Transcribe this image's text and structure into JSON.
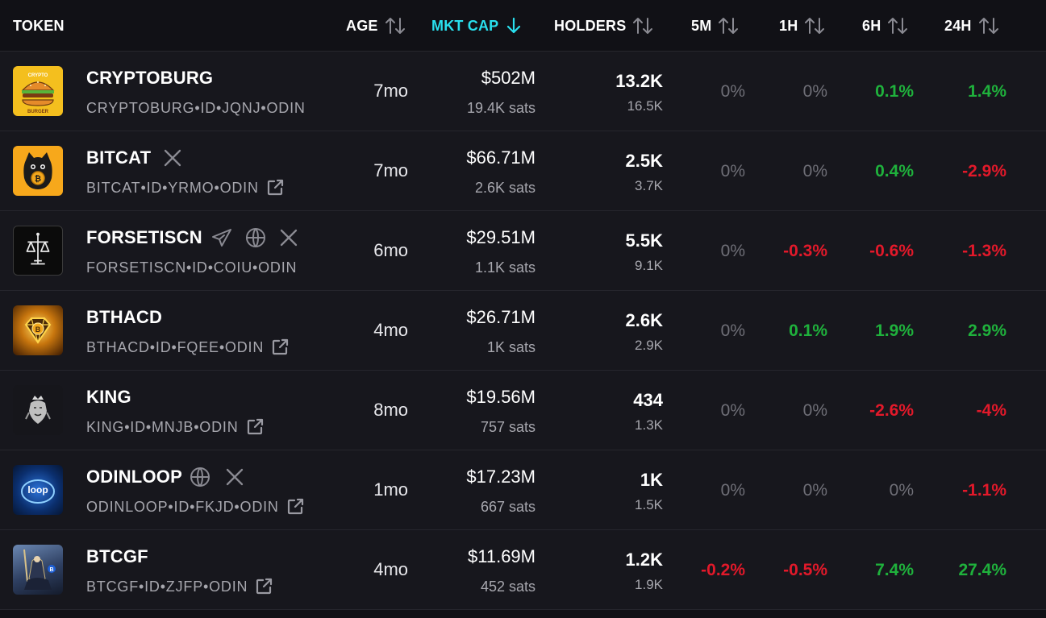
{
  "header": {
    "token": "TOKEN",
    "age": "AGE",
    "mktcap": "MKT CAP",
    "holders": "HOLDERS",
    "m5": "5M",
    "h1": "1H",
    "h6": "6H",
    "h24": "24H"
  },
  "colors": {
    "accent": "#29e0ee",
    "positive": "#1fb13c",
    "negative": "#e2192a",
    "neutral": "#6f6f77"
  },
  "rows": [
    {
      "name": "CRYPTOBURG",
      "id": "CRYPTOBURG•ID•JQNJ•ODIN",
      "logo_text": [
        "CRYPTO",
        "BURGER"
      ],
      "age": "7mo",
      "mktcap": "$502M",
      "sats": "19.4K sats",
      "holders": "13.2K",
      "holders2": "16.5K",
      "m5": "0%",
      "h1": "0%",
      "h6": "0.1%",
      "h24": "1.4%"
    },
    {
      "name": "BITCAT",
      "id": "BITCAT•ID•YRMO•ODIN",
      "age": "7mo",
      "mktcap": "$66.71M",
      "sats": "2.6K sats",
      "holders": "2.5K",
      "holders2": "3.7K",
      "m5": "0%",
      "h1": "0%",
      "h6": "0.4%",
      "h24": "-2.9%"
    },
    {
      "name": "FORSETISCN",
      "id": "FORSETISCN•ID•COIU•ODIN",
      "age": "6mo",
      "mktcap": "$29.51M",
      "sats": "1.1K sats",
      "holders": "5.5K",
      "holders2": "9.1K",
      "m5": "0%",
      "h1": "-0.3%",
      "h6": "-0.6%",
      "h24": "-1.3%"
    },
    {
      "name": "BTHACD",
      "id": "BTHACD•ID•FQEE•ODIN",
      "age": "4mo",
      "mktcap": "$26.71M",
      "sats": "1K sats",
      "holders": "2.6K",
      "holders2": "2.9K",
      "m5": "0%",
      "h1": "0.1%",
      "h6": "1.9%",
      "h24": "2.9%"
    },
    {
      "name": "KING",
      "id": "KING•ID•MNJB•ODIN",
      "age": "8mo",
      "mktcap": "$19.56M",
      "sats": "757 sats",
      "holders": "434",
      "holders2": "1.3K",
      "m5": "0%",
      "h1": "0%",
      "h6": "-2.6%",
      "h24": "-4%"
    },
    {
      "name": "ODINLOOP",
      "id": "ODINLOOP•ID•FKJD•ODIN",
      "logo_text": "loop",
      "age": "1mo",
      "mktcap": "$17.23M",
      "sats": "667 sats",
      "holders": "1K",
      "holders2": "1.5K",
      "m5": "0%",
      "h1": "0%",
      "h6": "0%",
      "h24": "-1.1%"
    },
    {
      "name": "BTCGF",
      "id": "BTCGF•ID•ZJFP•ODIN",
      "age": "4mo",
      "mktcap": "$11.69M",
      "sats": "452 sats",
      "holders": "1.2K",
      "holders2": "1.9K",
      "m5": "-0.2%",
      "h1": "-0.5%",
      "h6": "7.4%",
      "h24": "27.4%"
    }
  ]
}
